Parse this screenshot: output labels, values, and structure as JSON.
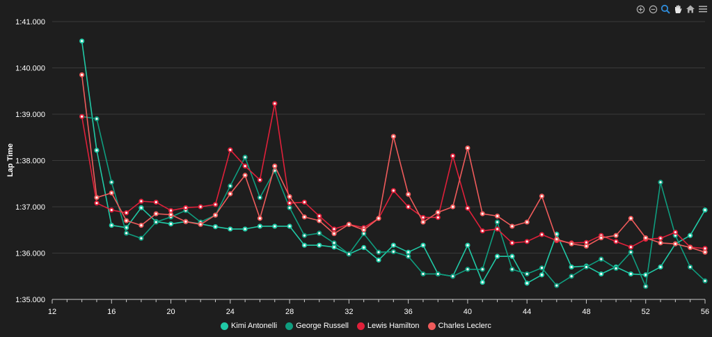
{
  "toolbar": {
    "icons": [
      "zoom-in-icon",
      "zoom-out-icon",
      "zoom-selection-icon",
      "pan-icon",
      "reset-zoom-icon",
      "menu-icon"
    ]
  },
  "chart_data": {
    "type": "line",
    "ylabel": "Lap Time",
    "xlim": [
      12,
      56
    ],
    "ylim": [
      95.0,
      101.0
    ],
    "x_ticks": [
      12,
      16,
      20,
      24,
      28,
      32,
      36,
      40,
      44,
      48,
      52,
      56
    ],
    "y_ticks": [
      {
        "value": 95.0,
        "label": "1:35.000"
      },
      {
        "value": 96.0,
        "label": "1:36.000"
      },
      {
        "value": 97.0,
        "label": "1:37.000"
      },
      {
        "value": 98.0,
        "label": "1:38.000"
      },
      {
        "value": 99.0,
        "label": "1:39.000"
      },
      {
        "value": 100.0,
        "label": "1:40.000"
      },
      {
        "value": 101.0,
        "label": "1:41.000"
      }
    ],
    "grid": true,
    "legend": "bottom",
    "series": [
      {
        "name": "Kimi Antonelli",
        "color": "#20c9a6",
        "x": [
          14,
          15,
          16,
          17,
          18,
          19,
          20,
          21,
          22,
          23,
          24,
          25,
          26,
          27,
          28,
          29,
          30,
          31,
          32,
          33,
          34,
          35,
          36,
          37,
          38,
          39,
          40,
          41,
          42,
          43,
          44,
          45,
          46,
          47,
          48,
          49,
          50,
          51,
          52,
          53,
          54,
          55,
          56
        ],
        "values": [
          100.58,
          98.22,
          96.6,
          96.55,
          96.98,
          96.68,
          96.63,
          96.68,
          96.63,
          96.57,
          96.52,
          96.52,
          96.58,
          96.58,
          96.58,
          96.17,
          96.17,
          96.13,
          95.98,
          96.12,
          95.85,
          96.17,
          96.02,
          96.17,
          95.55,
          95.5,
          96.17,
          95.37,
          95.93,
          95.93,
          95.35,
          95.53,
          96.41,
          95.7,
          95.72,
          95.55,
          95.7,
          95.55,
          95.53,
          95.7,
          96.2,
          96.38,
          96.93
        ]
      },
      {
        "name": "George Russell",
        "color": "#0f9d7f",
        "x": [
          14,
          15,
          16,
          17,
          18,
          19,
          20,
          21,
          22,
          23,
          24,
          25,
          26,
          27,
          28,
          29,
          30,
          31,
          32,
          33,
          34,
          35,
          36,
          37,
          38,
          39,
          40,
          41,
          42,
          43,
          44,
          45,
          46,
          47,
          48,
          49,
          50,
          51,
          52,
          53,
          54,
          55,
          56
        ],
        "values": [
          98.95,
          98.9,
          97.53,
          96.43,
          96.32,
          96.67,
          96.78,
          96.92,
          96.67,
          96.82,
          97.45,
          98.07,
          97.2,
          97.78,
          96.98,
          96.38,
          96.43,
          96.22,
          95.98,
          96.42,
          96.02,
          96.03,
          95.93,
          95.55,
          95.55,
          95.5,
          95.65,
          95.65,
          96.67,
          95.65,
          95.55,
          95.68,
          95.3,
          95.5,
          95.7,
          95.87,
          95.67,
          96.02,
          95.28,
          97.53,
          96.38,
          95.7,
          95.4
        ]
      },
      {
        "name": "Lewis Hamilton",
        "color": "#e0203a",
        "x": [
          14,
          15,
          16,
          17,
          18,
          19,
          20,
          21,
          22,
          23,
          24,
          25,
          26,
          27,
          28,
          29,
          30,
          31,
          32,
          33,
          34,
          35,
          36,
          37,
          38,
          39,
          40,
          41,
          42,
          43,
          44,
          45,
          46,
          47,
          48,
          49,
          50,
          51,
          52,
          53,
          54,
          55,
          56
        ],
        "values": [
          98.95,
          97.08,
          96.93,
          96.87,
          97.12,
          97.1,
          96.92,
          96.98,
          97.0,
          97.05,
          98.23,
          97.88,
          97.58,
          99.23,
          97.08,
          97.1,
          96.8,
          96.52,
          96.62,
          96.55,
          96.75,
          97.35,
          97.0,
          96.77,
          96.77,
          98.1,
          96.97,
          96.48,
          96.52,
          96.22,
          96.25,
          96.4,
          96.27,
          96.22,
          96.23,
          96.38,
          96.25,
          96.13,
          96.3,
          96.32,
          96.45,
          96.13,
          96.1
        ]
      },
      {
        "name": "Charles Leclerc",
        "color": "#ef5b5b",
        "x": [
          14,
          15,
          16,
          17,
          18,
          19,
          20,
          21,
          22,
          23,
          24,
          25,
          26,
          27,
          28,
          29,
          30,
          31,
          32,
          33,
          34,
          35,
          36,
          37,
          38,
          39,
          40,
          41,
          42,
          43,
          44,
          45,
          46,
          47,
          48,
          49,
          50,
          51,
          52,
          53,
          54,
          55,
          56
        ],
        "values": [
          99.85,
          97.2,
          97.3,
          96.7,
          96.6,
          96.85,
          96.83,
          96.68,
          96.62,
          96.82,
          97.28,
          97.68,
          96.75,
          97.88,
          97.22,
          96.78,
          96.7,
          96.42,
          96.62,
          96.5,
          96.75,
          98.52,
          97.27,
          96.67,
          96.88,
          97.0,
          98.27,
          96.85,
          96.8,
          96.58,
          96.67,
          97.23,
          96.3,
          96.2,
          96.15,
          96.33,
          96.38,
          96.75,
          96.33,
          96.22,
          96.2,
          96.12,
          96.02
        ]
      }
    ]
  }
}
